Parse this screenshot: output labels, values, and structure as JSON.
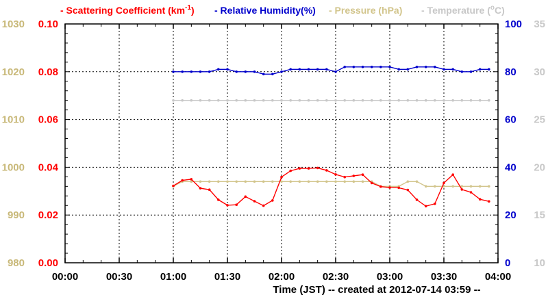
{
  "chart_data": {
    "type": "line",
    "legend": [
      {
        "label": "Scattering Coefficient (km",
        "sup": "-1",
        "tail": ")",
        "color": "#ff0000"
      },
      {
        "label": "Relative Humidity(%)",
        "color": "#0000cc"
      },
      {
        "label": "Pressure (hPa)",
        "color": "#d2c58c"
      },
      {
        "label": "Temperature (",
        "sup": "o",
        "tail": "C)",
        "color": "#c8c8c8"
      }
    ],
    "legend_marker": "-",
    "xlabel": "Time (JST)  -- created at 2012-07-14 03:59 --",
    "x_ticks": [
      "00:00",
      "00:30",
      "01:00",
      "01:30",
      "02:00",
      "02:30",
      "03:00",
      "03:30",
      "04:00"
    ],
    "xlim_minutes": [
      0,
      240
    ],
    "axes": {
      "pressure": {
        "ticks": [
          "980",
          "990",
          "1000",
          "1010",
          "1020",
          "1030"
        ],
        "ylim": [
          980,
          1030
        ],
        "color": "#c8b878"
      },
      "scattering": {
        "ticks": [
          "0.00",
          "0.02",
          "0.04",
          "0.06",
          "0.08",
          "0.10"
        ],
        "ylim": [
          0,
          0.1
        ],
        "color": "#ff0000"
      },
      "humidity": {
        "ticks": [
          "0",
          "20",
          "40",
          "60",
          "80",
          "100"
        ],
        "ylim": [
          0,
          100
        ],
        "color": "#0000cc"
      },
      "temperature": {
        "ticks": [
          "10",
          "15",
          "20",
          "25",
          "30",
          "35"
        ],
        "ylim": [
          10,
          35
        ],
        "color": "#c8c8c8"
      }
    },
    "grid": true,
    "series": [
      {
        "name": "Scattering Coefficient",
        "axis": "scattering",
        "color": "#ff0000",
        "x": [
          "01:00",
          "01:05",
          "01:10",
          "01:15",
          "01:20",
          "01:25",
          "01:30",
          "01:35",
          "01:40",
          "01:45",
          "01:50",
          "01:55",
          "02:00",
          "02:05",
          "02:10",
          "02:15",
          "02:20",
          "02:25",
          "02:30",
          "02:35",
          "02:40",
          "02:45",
          "02:50",
          "02:55",
          "03:00",
          "03:05",
          "03:10",
          "03:15",
          "03:20",
          "03:25",
          "03:30",
          "03:35",
          "03:40",
          "03:45",
          "03:50",
          "03:55"
        ],
        "values": [
          0.0322,
          0.0345,
          0.035,
          0.0312,
          0.0306,
          0.0264,
          0.0241,
          0.0243,
          0.0277,
          0.0258,
          0.0239,
          0.0261,
          0.0359,
          0.0385,
          0.0395,
          0.0395,
          0.0397,
          0.0387,
          0.037,
          0.0359,
          0.0364,
          0.0369,
          0.0334,
          0.0319,
          0.0315,
          0.0314,
          0.0305,
          0.0264,
          0.0237,
          0.0247,
          0.0334,
          0.0369,
          0.0307,
          0.0295,
          0.0266,
          0.0257
        ]
      },
      {
        "name": "Relative Humidity",
        "axis": "humidity",
        "color": "#0000cc",
        "x": [
          "01:00",
          "01:05",
          "01:10",
          "01:15",
          "01:20",
          "01:25",
          "01:30",
          "01:35",
          "01:40",
          "01:45",
          "01:50",
          "01:55",
          "02:00",
          "02:05",
          "02:10",
          "02:15",
          "02:20",
          "02:25",
          "02:30",
          "02:35",
          "02:40",
          "02:45",
          "02:50",
          "02:55",
          "03:00",
          "03:05",
          "03:10",
          "03:15",
          "03:20",
          "03:25",
          "03:30",
          "03:35",
          "03:40",
          "03:45",
          "03:50",
          "03:55"
        ],
        "values": [
          80,
          80,
          80,
          80,
          80,
          81,
          81,
          80,
          80,
          80,
          79,
          79,
          80,
          81,
          81,
          81,
          81,
          81,
          80,
          82,
          82,
          82,
          82,
          82,
          82,
          81,
          81,
          82,
          82,
          82,
          81,
          81,
          80,
          80,
          81,
          81
        ]
      },
      {
        "name": "Pressure",
        "axis": "pressure",
        "color": "#d2c58c",
        "x": [
          "01:00",
          "01:05",
          "01:10",
          "01:15",
          "01:20",
          "01:25",
          "01:30",
          "01:35",
          "01:40",
          "01:45",
          "01:50",
          "01:55",
          "02:00",
          "02:05",
          "02:10",
          "02:15",
          "02:20",
          "02:25",
          "02:30",
          "02:35",
          "02:40",
          "02:45",
          "02:50",
          "02:55",
          "03:00",
          "03:05",
          "03:10",
          "03:15",
          "03:20",
          "03:25",
          "03:30",
          "03:35",
          "03:40",
          "03:45",
          "03:50",
          "03:55"
        ],
        "values": [
          996,
          997,
          997,
          997,
          997,
          997,
          997,
          997,
          997,
          997,
          997,
          997,
          997,
          997,
          997,
          997,
          997,
          997,
          997,
          997,
          997,
          997,
          997,
          996,
          996,
          996,
          997,
          997,
          996,
          996,
          996,
          996,
          996,
          996,
          996,
          996
        ]
      },
      {
        "name": "Temperature",
        "axis": "temperature",
        "color": "#c8c8c8",
        "x": [
          "01:00",
          "01:05",
          "01:10",
          "01:15",
          "01:20",
          "01:25",
          "01:30",
          "01:35",
          "01:40",
          "01:45",
          "01:50",
          "01:55",
          "02:00",
          "02:05",
          "02:10",
          "02:15",
          "02:20",
          "02:25",
          "02:30",
          "02:35",
          "02:40",
          "02:45",
          "02:50",
          "02:55",
          "03:00",
          "03:05",
          "03:10",
          "03:15",
          "03:20",
          "03:25",
          "03:30",
          "03:35",
          "03:40",
          "03:45",
          "03:50",
          "03:55"
        ],
        "values": [
          27,
          27,
          27,
          27,
          27,
          27,
          27,
          27,
          27,
          27,
          27,
          27,
          27,
          27,
          27,
          27,
          27,
          27,
          27,
          27,
          27,
          27,
          27,
          27,
          27,
          27,
          27,
          27,
          27,
          27,
          27,
          27,
          27,
          27,
          27,
          27
        ]
      }
    ]
  }
}
